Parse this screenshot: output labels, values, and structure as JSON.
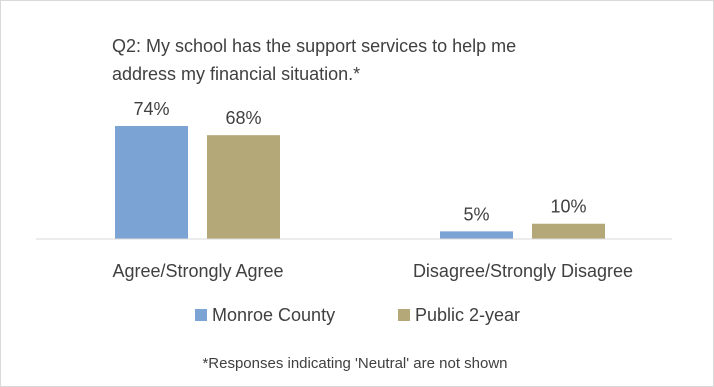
{
  "chart_data": {
    "type": "bar",
    "title": "Q2: My school has the support services to help me address my financial situation.*",
    "title_lines": [
      "Q2: My school has the support services to help me",
      "address my financial situation.*"
    ],
    "categories": [
      "Agree/Strongly Agree",
      "Disagree/Strongly Disagree"
    ],
    "series": [
      {
        "name": "Monroe County",
        "values": [
          74,
          5
        ],
        "labels": [
          "74%",
          "5%"
        ],
        "color": "#7ba3d4"
      },
      {
        "name": "Public 2-year",
        "values": [
          68,
          10
        ],
        "labels": [
          "68%",
          "10%"
        ],
        "color": "#b5a878"
      }
    ],
    "value_unit": "%",
    "ylim": [
      0,
      74
    ],
    "grid": false,
    "legend_position": "bottom",
    "footnote": "*Responses indicating 'Neutral' are not shown"
  }
}
